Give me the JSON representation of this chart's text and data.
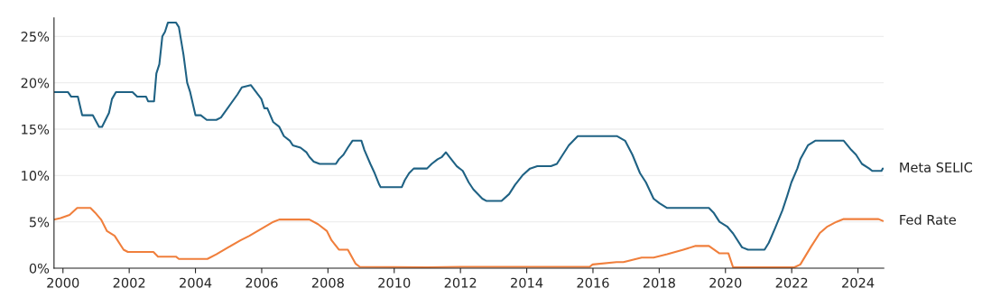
{
  "chart_data": {
    "type": "line",
    "xlim": [
      1999.73,
      2024.78
    ],
    "xticks": [
      2000,
      2002,
      2004,
      2006,
      2008,
      2010,
      2012,
      2014,
      2016,
      2018,
      2020,
      2022,
      2024
    ],
    "ylim": [
      0,
      27
    ],
    "yticks": [
      {
        "value": 0,
        "label": "0%"
      },
      {
        "value": 5,
        "label": "5%"
      },
      {
        "value": 10,
        "label": "10%"
      },
      {
        "value": 15,
        "label": "15%"
      },
      {
        "value": 20,
        "label": "20%"
      },
      {
        "value": 25,
        "label": "25%"
      }
    ],
    "grid": "y",
    "legend": false,
    "line_style": "solid",
    "series": [
      {
        "name": "Meta SELIC",
        "color": "#1f6284",
        "x": [
          1999.75,
          2000.15,
          2000.25,
          2000.45,
          2000.58,
          2000.9,
          2001.09,
          2001.18,
          2001.39,
          2001.48,
          2001.6,
          2002.1,
          2002.24,
          2002.51,
          2002.57,
          2002.75,
          2002.82,
          2002.91,
          2003.0,
          2003.08,
          2003.17,
          2003.41,
          2003.5,
          2003.64,
          2003.75,
          2003.84,
          2004.0,
          2004.16,
          2004.34,
          2004.63,
          2004.77,
          2005.27,
          2005.4,
          2005.67,
          2005.99,
          2006.08,
          2006.17,
          2006.35,
          2006.53,
          2006.67,
          2006.85,
          2006.94,
          2007.17,
          2007.35,
          2007.44,
          2007.57,
          2007.75,
          2008.24,
          2008.33,
          2008.47,
          2008.6,
          2008.74,
          2009.01,
          2009.1,
          2009.28,
          2009.41,
          2009.55,
          2009.59,
          2010.23,
          2010.32,
          2010.45,
          2010.59,
          2010.99,
          2011.13,
          2011.31,
          2011.44,
          2011.56,
          2011.67,
          2011.89,
          2012.07,
          2012.25,
          2012.39,
          2012.66,
          2012.79,
          2013.24,
          2013.47,
          2013.65,
          2013.87,
          2014.1,
          2014.32,
          2014.73,
          2014.91,
          2015.09,
          2015.27,
          2015.54,
          2016.72,
          2016.97,
          2017.19,
          2017.42,
          2017.6,
          2017.83,
          2018.01,
          2018.24,
          2019.5,
          2019.64,
          2019.82,
          2020.05,
          2020.23,
          2020.5,
          2020.68,
          2021.18,
          2021.31,
          2021.49,
          2021.72,
          2021.86,
          2021.99,
          2022.17,
          2022.26,
          2022.49,
          2022.71,
          2023.57,
          2023.8,
          2023.94,
          2024.12,
          2024.34,
          2024.43,
          2024.71,
          2024.75
        ],
        "values": [
          19,
          19,
          18.5,
          18.5,
          16.5,
          16.5,
          15.25,
          15.25,
          16.75,
          18.25,
          19,
          19,
          18.5,
          18.5,
          18,
          18,
          21,
          22,
          25,
          25.5,
          26.5,
          26.5,
          26,
          23,
          20,
          19,
          16.5,
          16.5,
          16,
          16,
          16.25,
          18.75,
          19.5,
          19.75,
          18.25,
          17.25,
          17.25,
          15.75,
          15.25,
          14.25,
          13.75,
          13.25,
          13,
          12.5,
          12,
          11.5,
          11.25,
          11.25,
          11.75,
          12.25,
          13,
          13.75,
          13.75,
          12.75,
          11.25,
          10.25,
          9,
          8.75,
          8.75,
          9.5,
          10.25,
          10.75,
          10.75,
          11.25,
          11.75,
          12,
          12.5,
          12,
          11,
          10.5,
          9.25,
          8.5,
          7.5,
          7.25,
          7.25,
          8,
          9,
          10,
          10.75,
          11,
          11,
          11.25,
          12.25,
          13.25,
          14.25,
          14.25,
          13.75,
          12.25,
          10.25,
          9.25,
          7.5,
          7,
          6.5,
          6.5,
          6,
          5,
          4.5,
          3.75,
          2.25,
          2,
          2,
          2.75,
          4.25,
          6.25,
          7.75,
          9.25,
          10.75,
          11.75,
          13.25,
          13.75,
          13.75,
          12.75,
          12.25,
          11.25,
          10.75,
          10.5,
          10.5,
          10.75
        ]
      },
      {
        "name": "Fed Rate",
        "color": "#f07f3c",
        "x": [
          1999.75,
          1999.93,
          2000.2,
          2000.43,
          2000.83,
          2000.97,
          2001.15,
          2001.33,
          2001.56,
          2001.83,
          2001.96,
          2002.73,
          2002.87,
          2003.41,
          2003.5,
          2004.36,
          2004.63,
          2004.99,
          2005.36,
          2005.63,
          2005.99,
          2006.35,
          2006.53,
          2007.44,
          2007.7,
          2007.97,
          2008.11,
          2008.33,
          2008.6,
          2008.83,
          2008.96,
          2011.0,
          2012.0,
          2015.9,
          2015.99,
          2016.71,
          2016.92,
          2017.47,
          2017.83,
          2018.24,
          2018.73,
          2019.1,
          2019.5,
          2019.82,
          2020.09,
          2020.23,
          2022.08,
          2022.26,
          2022.58,
          2022.85,
          2023.08,
          2023.35,
          2023.57,
          2024.62,
          2024.75
        ],
        "values": [
          5.25,
          5.4,
          5.75,
          6.5,
          6.5,
          6,
          5.25,
          4,
          3.5,
          2,
          1.75,
          1.75,
          1.25,
          1.25,
          1,
          1,
          1.5,
          2.25,
          3,
          3.5,
          4.25,
          5,
          5.25,
          5.25,
          4.75,
          4,
          3,
          2,
          2,
          0.5,
          0.15,
          0.1,
          0.15,
          0.15,
          0.4,
          0.65,
          0.65,
          1.15,
          1.15,
          1.5,
          2,
          2.4,
          2.4,
          1.6,
          1.6,
          0.1,
          0.1,
          0.4,
          2.3,
          3.8,
          4.5,
          5,
          5.3,
          5.3,
          5.1
        ]
      }
    ]
  }
}
